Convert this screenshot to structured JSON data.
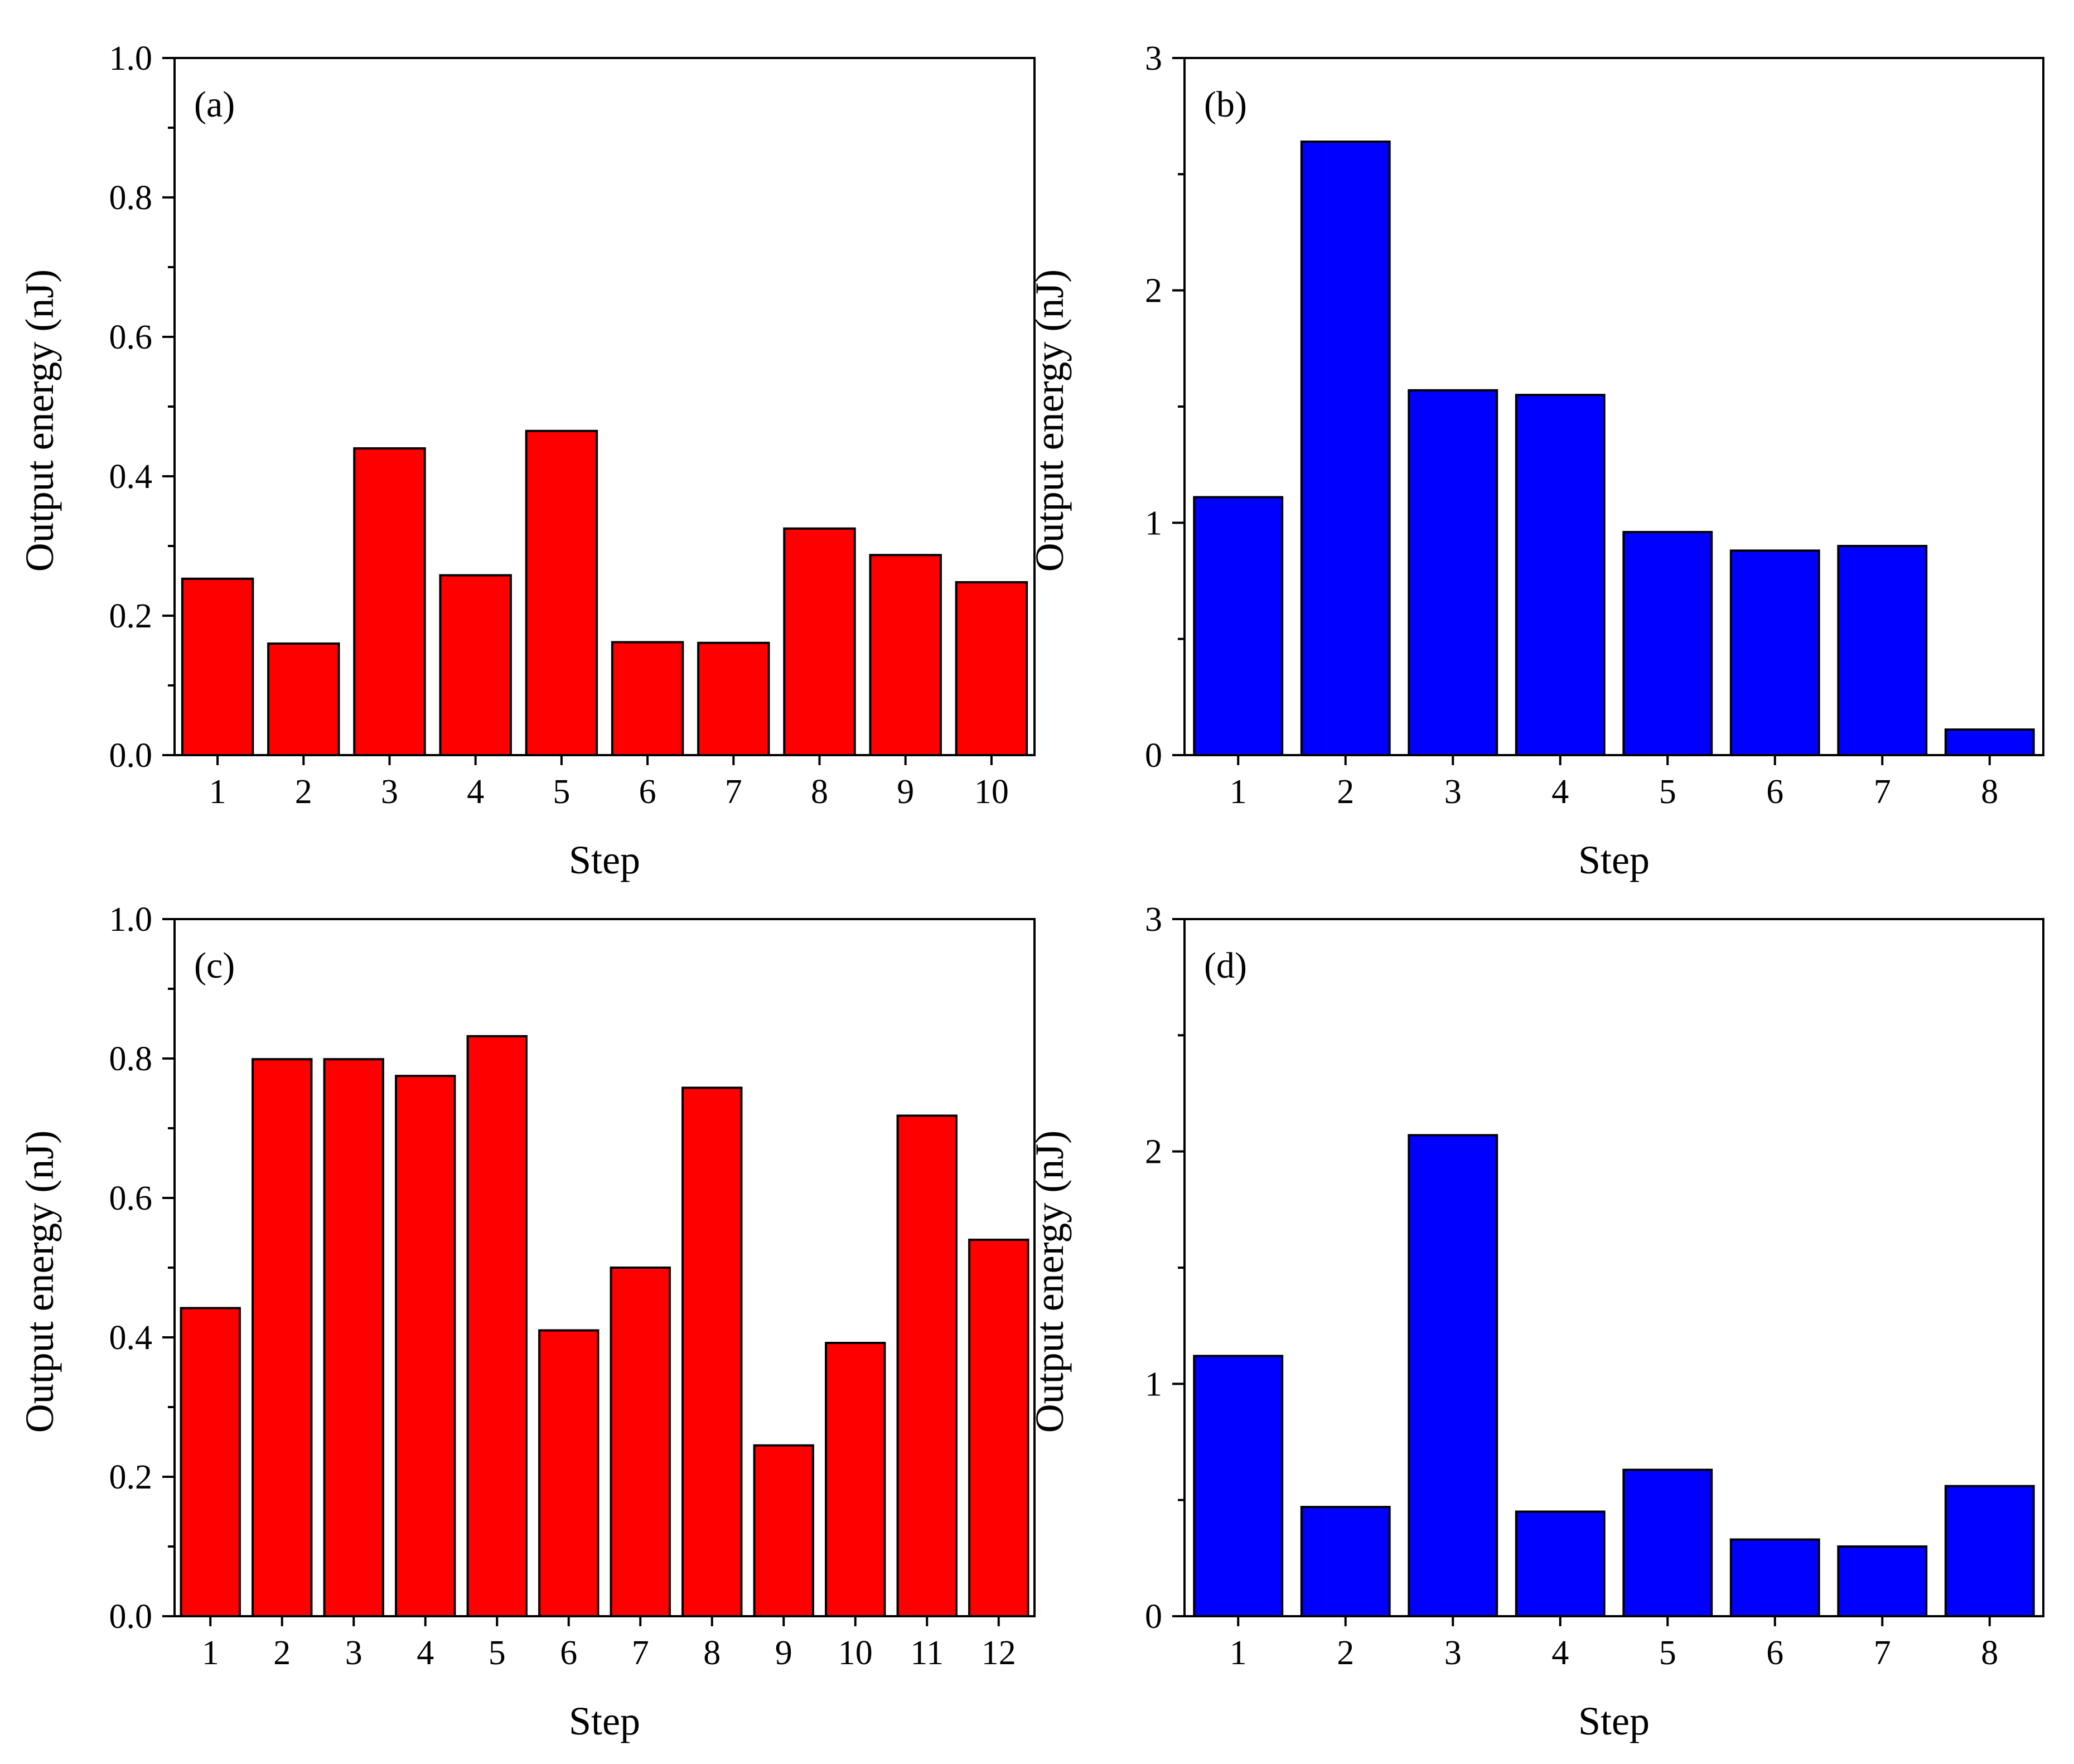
{
  "chart_data": [
    {
      "type": "bar",
      "panel": "(a)",
      "color": "#ff0000",
      "categories": [
        "1",
        "2",
        "3",
        "4",
        "5",
        "6",
        "7",
        "8",
        "9",
        "10"
      ],
      "values": [
        0.253,
        0.16,
        0.44,
        0.258,
        0.465,
        0.162,
        0.161,
        0.325,
        0.287,
        0.248
      ],
      "xlabel": "Step",
      "ylabel": "Output energy (nJ)",
      "ylim": [
        0,
        1.0
      ],
      "yticks": [
        0.0,
        0.2,
        0.4,
        0.6,
        0.8,
        1.0
      ],
      "ytick_labels": [
        "0.0",
        "0.2",
        "0.4",
        "0.6",
        "0.8",
        "1.0"
      ]
    },
    {
      "type": "bar",
      "panel": "(b)",
      "color": "#0000ff",
      "categories": [
        "1",
        "2",
        "3",
        "4",
        "5",
        "6",
        "7",
        "8"
      ],
      "values": [
        1.11,
        2.64,
        1.57,
        1.55,
        0.96,
        0.88,
        0.9,
        0.11
      ],
      "xlabel": "Step",
      "ylabel": "Output energy (nJ)",
      "ylim": [
        0,
        3
      ],
      "yticks": [
        0,
        1,
        2,
        3
      ],
      "ytick_labels": [
        "0",
        "1",
        "2",
        "3"
      ]
    },
    {
      "type": "bar",
      "panel": "(c)",
      "color": "#ff0000",
      "categories": [
        "1",
        "2",
        "3",
        "4",
        "5",
        "6",
        "7",
        "8",
        "9",
        "10",
        "11",
        "12"
      ],
      "values": [
        0.442,
        0.799,
        0.799,
        0.775,
        0.832,
        0.41,
        0.5,
        0.758,
        0.245,
        0.392,
        0.718,
        0.54
      ],
      "xlabel": "Step",
      "ylabel": "Output energy (nJ)",
      "ylim": [
        0,
        1.0
      ],
      "yticks": [
        0.0,
        0.2,
        0.4,
        0.6,
        0.8,
        1.0
      ],
      "ytick_labels": [
        "0.0",
        "0.2",
        "0.4",
        "0.6",
        "0.8",
        "1.0"
      ]
    },
    {
      "type": "bar",
      "panel": "(d)",
      "color": "#0000ff",
      "categories": [
        "1",
        "2",
        "3",
        "4",
        "5",
        "6",
        "7",
        "8"
      ],
      "values": [
        1.12,
        0.47,
        2.07,
        0.45,
        0.63,
        0.33,
        0.3,
        0.56
      ],
      "xlabel": "Step",
      "ylabel": "Output energy (nJ)",
      "ylim": [
        0,
        3
      ],
      "yticks": [
        0,
        1,
        2,
        3
      ],
      "ytick_labels": [
        "0",
        "1",
        "2",
        "3"
      ]
    }
  ]
}
